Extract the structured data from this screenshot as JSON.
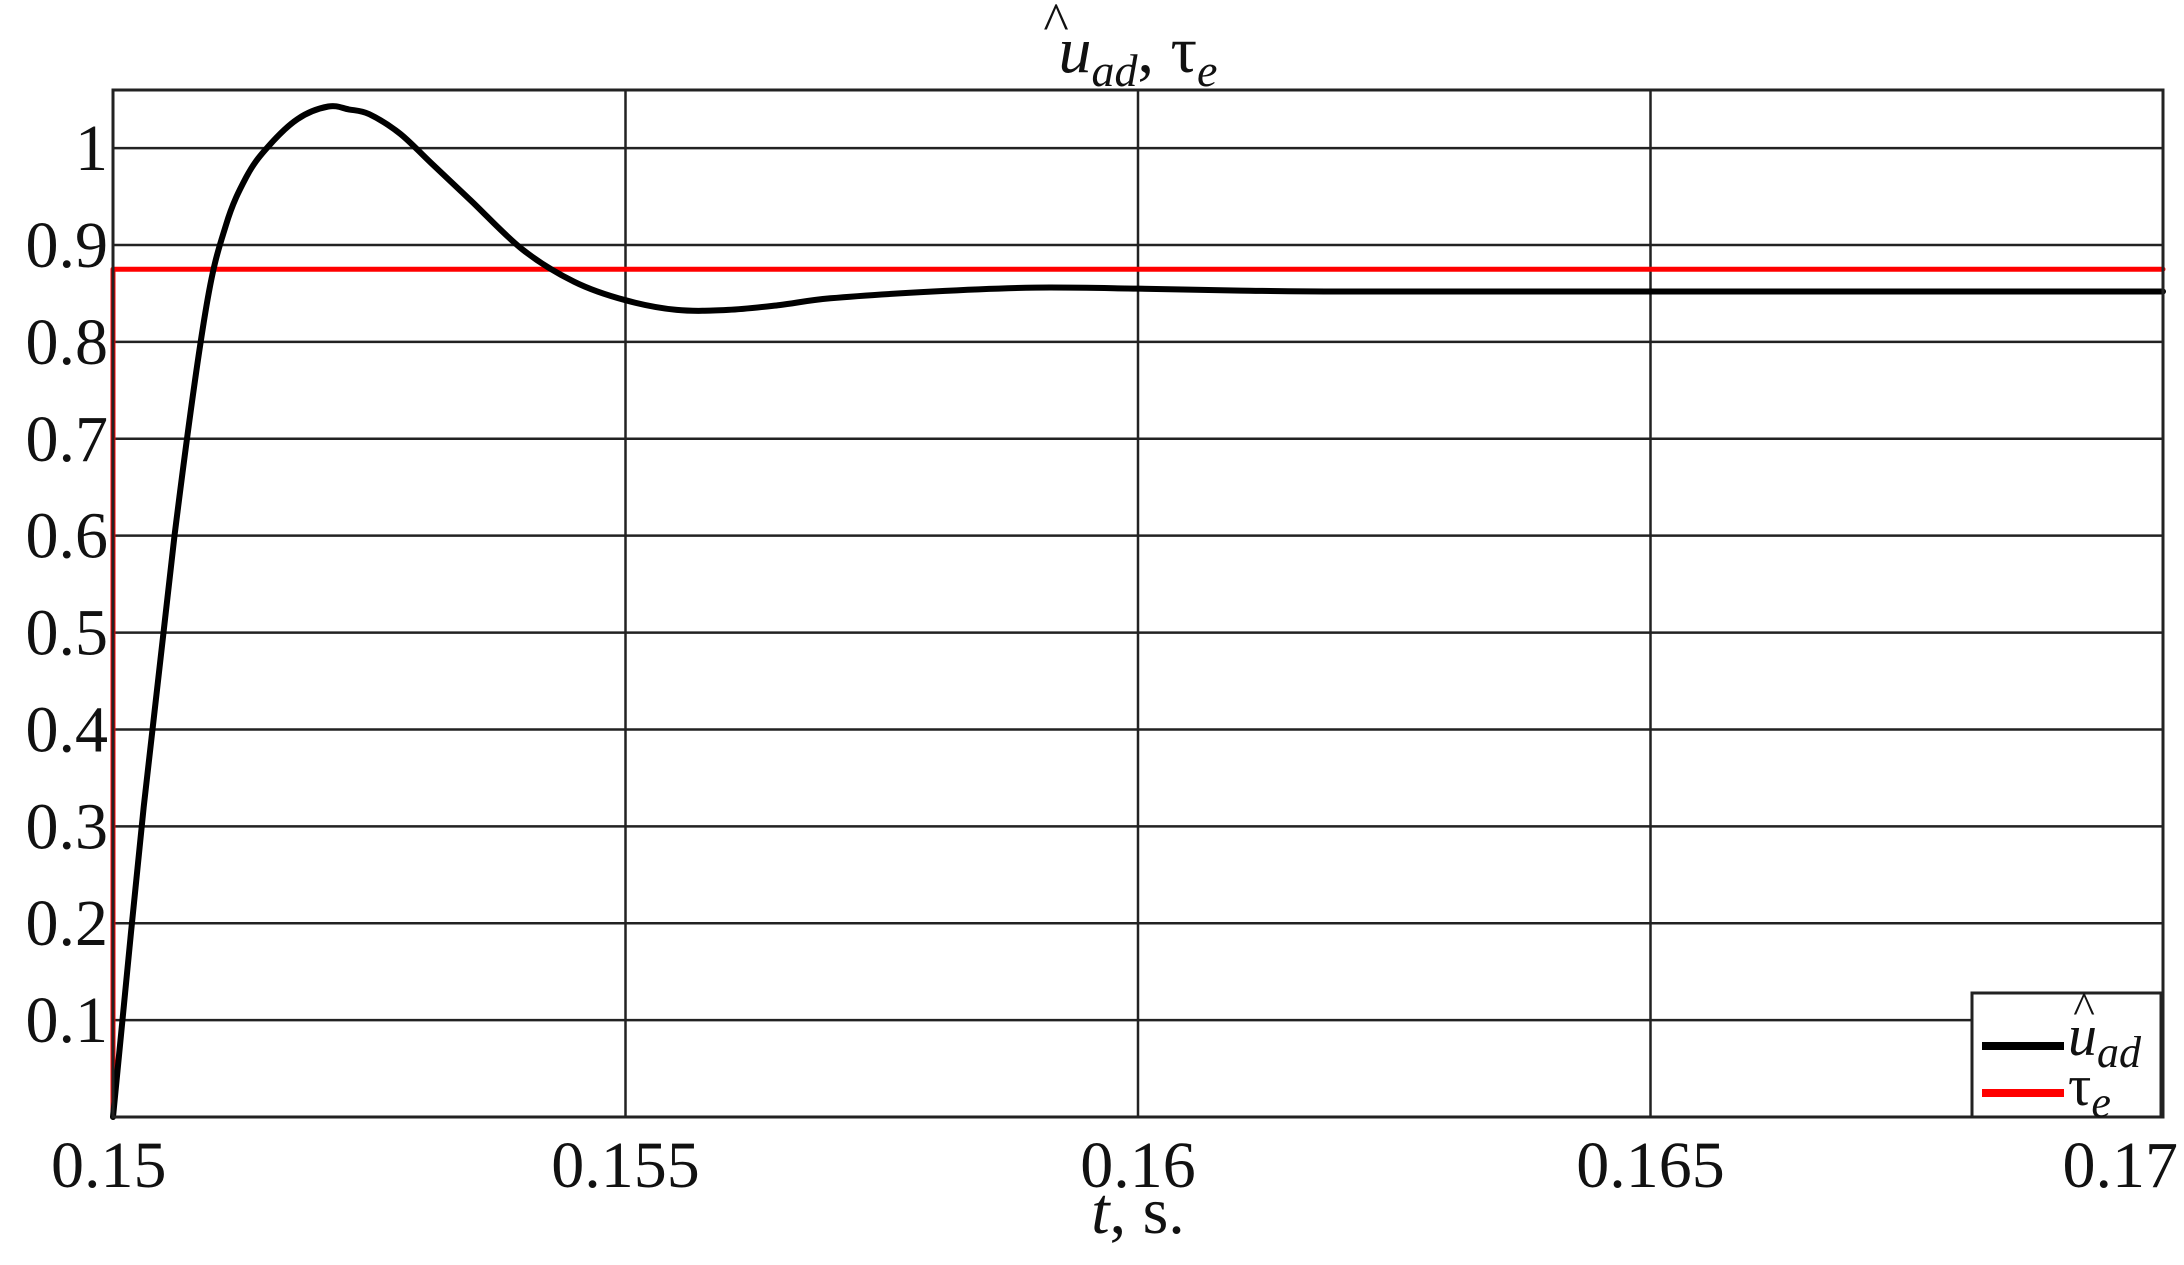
{
  "chart_data": {
    "type": "line",
    "title": "û_ad, τ_e",
    "title_parts": {
      "symbol": "u",
      "hat": "^",
      "sub": "ad",
      "sep": ", ",
      "tau": "τ",
      "tau_sub": "e"
    },
    "xlabel": "t, s.",
    "xlabel_parts": {
      "var": "t",
      "rest": ", s."
    },
    "ylabel": "",
    "xlim": [
      0.15,
      0.17
    ],
    "ylim": [
      0,
      1.06
    ],
    "x_ticks": [
      0.15,
      0.155,
      0.16,
      0.165,
      0.17
    ],
    "x_tick_labels": [
      "0.15",
      "0.155",
      "0.16",
      "0.165",
      "0.17"
    ],
    "y_ticks": [
      0.1,
      0.2,
      0.3,
      0.4,
      0.5,
      0.6,
      0.7,
      0.8,
      0.9,
      1.0
    ],
    "y_tick_labels": [
      "0.1",
      "0.2",
      "0.3",
      "0.4",
      "0.5",
      "0.6",
      "0.7",
      "0.8",
      "0.9",
      "1"
    ],
    "grid": true,
    "legend_position": "bottom-right",
    "legend": [
      {
        "name": "û_ad",
        "label_main": "u",
        "label_sub": "ad",
        "hat": "^",
        "color": "#000000"
      },
      {
        "name": "τ_e",
        "label_main": "τ",
        "label_sub": "e",
        "color": "#ff0000"
      }
    ],
    "series": [
      {
        "name": "û_ad",
        "color": "#000000",
        "x": [
          0.15,
          0.1503,
          0.1506,
          0.1509,
          0.1511,
          0.1513,
          0.1515,
          0.1518,
          0.1521,
          0.1523,
          0.1525,
          0.1528,
          0.1531,
          0.1535,
          0.154,
          0.1545,
          0.155,
          0.1555,
          0.156,
          0.1565,
          0.157,
          0.158,
          0.159,
          0.16,
          0.161,
          0.162,
          0.164,
          0.166,
          0.168,
          0.17
        ],
        "y": [
          0.0,
          0.32,
          0.6,
          0.83,
          0.92,
          0.97,
          1.0,
          1.03,
          1.043,
          1.04,
          1.035,
          1.015,
          0.985,
          0.945,
          0.895,
          0.862,
          0.843,
          0.833,
          0.833,
          0.838,
          0.845,
          0.852,
          0.856,
          0.855,
          0.853,
          0.852,
          0.852,
          0.852,
          0.852,
          0.852
        ]
      },
      {
        "name": "τ_e",
        "color": "#ff0000",
        "x": [
          0.15,
          0.15,
          0.17
        ],
        "y": [
          0.0,
          0.875,
          0.875
        ]
      }
    ]
  }
}
